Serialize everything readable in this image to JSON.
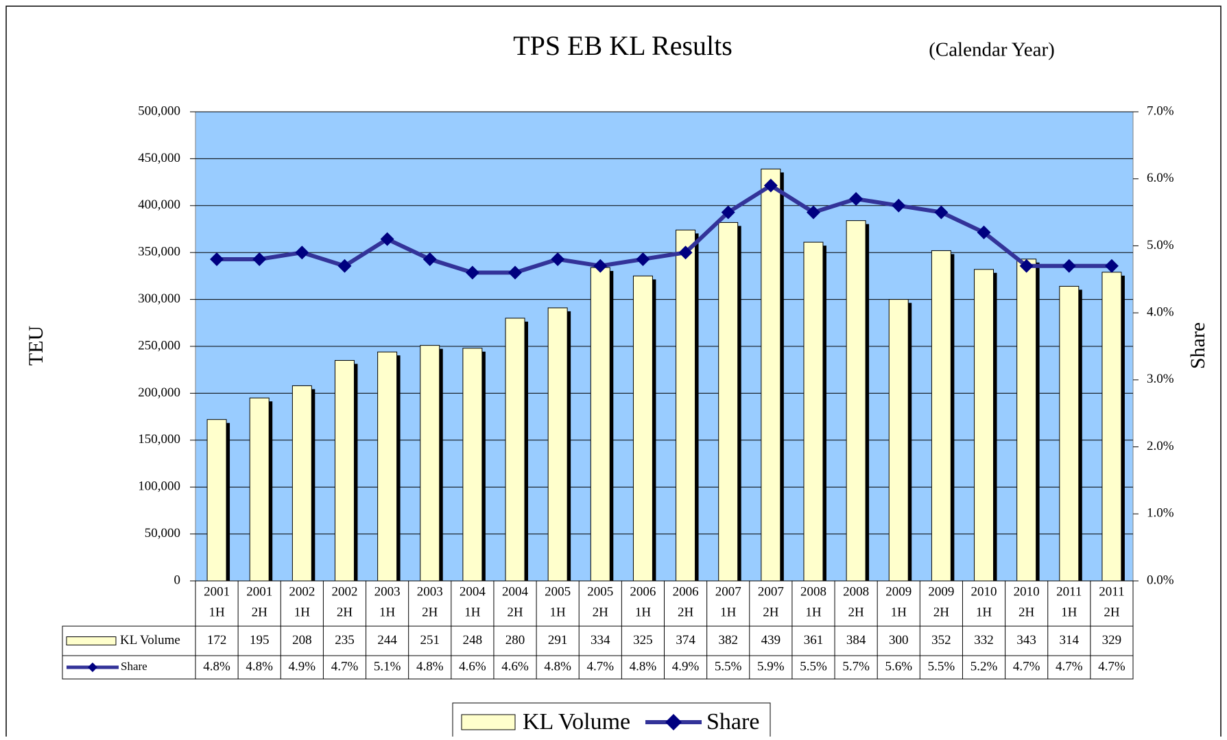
{
  "chart_data": {
    "type": "bar",
    "title": "TPS EB KL Results",
    "subtitle": "(Calendar Year)",
    "y_label": "TEU",
    "y2_label": "Share",
    "categories": [
      [
        "2001",
        "1H"
      ],
      [
        "2001",
        "2H"
      ],
      [
        "2002",
        "1H"
      ],
      [
        "2002",
        "2H"
      ],
      [
        "2003",
        "1H"
      ],
      [
        "2003",
        "2H"
      ],
      [
        "2004",
        "1H"
      ],
      [
        "2004",
        "2H"
      ],
      [
        "2005",
        "1H"
      ],
      [
        "2005",
        "2H"
      ],
      [
        "2006",
        "1H"
      ],
      [
        "2006",
        "2H"
      ],
      [
        "2007",
        "1H"
      ],
      [
        "2007",
        "2H"
      ],
      [
        "2008",
        "1H"
      ],
      [
        "2008",
        "2H"
      ],
      [
        "2009",
        "1H"
      ],
      [
        "2009",
        "2H"
      ],
      [
        "2010",
        "1H"
      ],
      [
        "2010",
        "2H"
      ],
      [
        "2011",
        "1H"
      ],
      [
        "2011",
        "2H"
      ]
    ],
    "series": [
      {
        "name": "KL Volume",
        "type": "bar",
        "color": "#ffffcc",
        "values": [
          172000,
          195000,
          208000,
          235000,
          244000,
          251000,
          248000,
          280000,
          291000,
          334000,
          325000,
          374000,
          382000,
          439000,
          361000,
          384000,
          300000,
          352000,
          332000,
          343000,
          314000,
          329000
        ],
        "value_labels": [
          "172",
          "195",
          "208",
          "235",
          "244",
          "251",
          "248",
          "280",
          "291",
          "334",
          "325",
          "374",
          "382",
          "439",
          "361",
          "384",
          "300",
          "352",
          "332",
          "343",
          "314",
          "329"
        ]
      },
      {
        "name": "Share",
        "type": "line",
        "axis": "y2",
        "color": "#333399",
        "marker_color": "#000080",
        "values": [
          4.8,
          4.8,
          4.9,
          4.7,
          5.1,
          4.8,
          4.6,
          4.6,
          4.8,
          4.7,
          4.8,
          4.9,
          5.5,
          5.9,
          5.5,
          5.7,
          5.6,
          5.5,
          5.2,
          4.7,
          4.7,
          4.7
        ],
        "value_labels": [
          "4.8%",
          "4.8%",
          "4.9%",
          "4.7%",
          "5.1%",
          "4.8%",
          "4.6%",
          "4.6%",
          "4.8%",
          "4.7%",
          "4.8%",
          "4.9%",
          "5.5%",
          "5.9%",
          "5.5%",
          "5.7%",
          "5.6%",
          "5.5%",
          "5.2%",
          "4.7%",
          "4.7%",
          "4.7%"
        ]
      }
    ],
    "ylim": [
      0,
      500000
    ],
    "yticks": [
      0,
      {
        "value": 50000,
        "label": "50,000"
      },
      {
        "value": 100000,
        "label": "100,000"
      },
      {
        "value": 150000,
        "label": "150,000"
      },
      {
        "value": 200000,
        "label": "200,000"
      },
      {
        "value": 250000,
        "label": "250,000"
      },
      {
        "value": 300000,
        "label": "300,000"
      },
      {
        "value": 350000,
        "label": "350,000"
      },
      {
        "value": 400000,
        "label": "400,000"
      },
      {
        "value": 450000,
        "label": "450,000"
      },
      {
        "value": 500000,
        "label": "500,000"
      }
    ],
    "y2lim": [
      0,
      7
    ],
    "y2ticks": [
      {
        "value": 0,
        "label": "0.0%"
      },
      {
        "value": 1,
        "label": "1.0%"
      },
      {
        "value": 2,
        "label": "2.0%"
      },
      {
        "value": 3,
        "label": "3.0%"
      },
      {
        "value": 4,
        "label": "4.0%"
      },
      {
        "value": 5,
        "label": "5.0%"
      },
      {
        "value": 6,
        "label": "6.0%"
      },
      {
        "value": 7,
        "label": "7.0%"
      }
    ],
    "grid": true,
    "plot_background": "#99ccff",
    "legend": "bottom"
  }
}
